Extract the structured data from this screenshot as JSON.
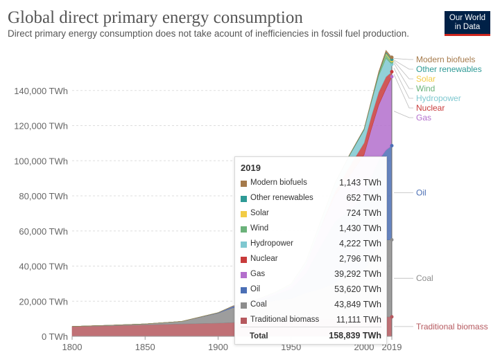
{
  "header": {
    "title": "Global direct primary energy consumption",
    "subtitle": "Direct primary energy consumption does not take acount of inefficiencies in fossil fuel production.",
    "logo_line1": "Our World",
    "logo_line2": "in Data"
  },
  "chart_data": {
    "type": "area",
    "stacked": true,
    "x": [
      1800,
      1825,
      1850,
      1875,
      1900,
      1910,
      1920,
      1930,
      1940,
      1950,
      1960,
      1970,
      1980,
      1990,
      2000,
      2005,
      2010,
      2015,
      2019
    ],
    "xticks": [
      1800,
      1850,
      1900,
      1950,
      2000,
      2019
    ],
    "xlim": [
      1800,
      2019
    ],
    "ylim": [
      0,
      160000
    ],
    "yticks": [
      0,
      20000,
      40000,
      60000,
      80000,
      100000,
      120000,
      140000
    ],
    "ytick_labels": [
      "0 TWh",
      "20,000 TWh",
      "40,000 TWh",
      "60,000 TWh",
      "80,000 TWh",
      "100,000 TWh",
      "120,000 TWh",
      "140,000 TWh"
    ],
    "grid": true,
    "series": [
      {
        "name": "Traditional biomass",
        "color": "#b5585e",
        "values": [
          5556,
          6000,
          6500,
          7000,
          7500,
          7800,
          8000,
          8300,
          8600,
          8900,
          9200,
          9500,
          9800,
          10100,
          10400,
          10600,
          10800,
          11000,
          11111
        ]
      },
      {
        "name": "Coal",
        "color": "#8c8c8c",
        "values": [
          97,
          300,
          570,
          1500,
          5700,
          8500,
          9500,
          10500,
          12000,
          12600,
          15500,
          17500,
          20500,
          25800,
          27000,
          34500,
          42000,
          44000,
          43849
        ]
      },
      {
        "name": "Oil",
        "color": "#4b6fb5",
        "values": [
          0,
          0,
          0,
          5,
          180,
          700,
          1200,
          2300,
          3400,
          5400,
          11000,
          24000,
          35000,
          36000,
          42000,
          46000,
          47500,
          51000,
          53620
        ]
      },
      {
        "name": "Gas",
        "color": "#b36fcc",
        "values": [
          0,
          0,
          0,
          0,
          64,
          150,
          300,
          600,
          900,
          2100,
          4700,
          10600,
          15000,
          19500,
          24000,
          27000,
          31500,
          35000,
          39292
        ]
      },
      {
        "name": "Nuclear",
        "color": "#c83b3b",
        "values": [
          0,
          0,
          0,
          0,
          0,
          0,
          0,
          0,
          0,
          0,
          0,
          200,
          2000,
          5300,
          6800,
          7300,
          7300,
          6800,
          2796
        ]
      },
      {
        "name": "Hydropower",
        "color": "#7fc8d0",
        "values": [
          0,
          0,
          0,
          0,
          20,
          60,
          200,
          360,
          550,
          900,
          1900,
          3300,
          4800,
          6300,
          7300,
          7900,
          9300,
          10500,
          4222
        ]
      },
      {
        "name": "Wind",
        "color": "#6bb27a",
        "values": [
          0,
          0,
          0,
          0,
          0,
          0,
          0,
          0,
          0,
          0,
          0,
          0,
          0,
          10,
          85,
          300,
          900,
          2200,
          1430
        ]
      },
      {
        "name": "Solar",
        "color": "#f2cc45",
        "values": [
          0,
          0,
          0,
          0,
          0,
          0,
          0,
          0,
          0,
          0,
          0,
          0,
          0,
          0,
          3,
          10,
          80,
          720,
          724
        ]
      },
      {
        "name": "Other renewables",
        "color": "#2e9a96",
        "values": [
          0,
          0,
          0,
          0,
          0,
          0,
          0,
          0,
          0,
          0,
          0,
          0,
          150,
          350,
          500,
          560,
          670,
          800,
          652
        ]
      },
      {
        "name": "Modern biofuels",
        "color": "#a57a4b",
        "values": [
          0,
          0,
          0,
          0,
          0,
          0,
          0,
          0,
          0,
          0,
          0,
          0,
          50,
          100,
          110,
          200,
          650,
          850,
          1143
        ]
      }
    ],
    "legend_position": "right",
    "tooltip": {
      "year": "2019",
      "rows": [
        {
          "name": "Modern biofuels",
          "value": "1,143 TWh",
          "color": "#a57a4b"
        },
        {
          "name": "Other renewables",
          "value": "652 TWh",
          "color": "#2e9a96"
        },
        {
          "name": "Solar",
          "value": "724 TWh",
          "color": "#f2cc45"
        },
        {
          "name": "Wind",
          "value": "1,430 TWh",
          "color": "#6bb27a"
        },
        {
          "name": "Hydropower",
          "value": "4,222 TWh",
          "color": "#7fc8d0"
        },
        {
          "name": "Nuclear",
          "value": "2,796 TWh",
          "color": "#c83b3b"
        },
        {
          "name": "Gas",
          "value": "39,292 TWh",
          "color": "#b36fcc"
        },
        {
          "name": "Oil",
          "value": "53,620 TWh",
          "color": "#4b6fb5"
        },
        {
          "name": "Coal",
          "value": "43,849 TWh",
          "color": "#8c8c8c"
        },
        {
          "name": "Traditional biomass",
          "value": "11,111 TWh",
          "color": "#b5585e"
        }
      ],
      "total_label": "Total",
      "total_value": "158,839 TWh"
    }
  }
}
